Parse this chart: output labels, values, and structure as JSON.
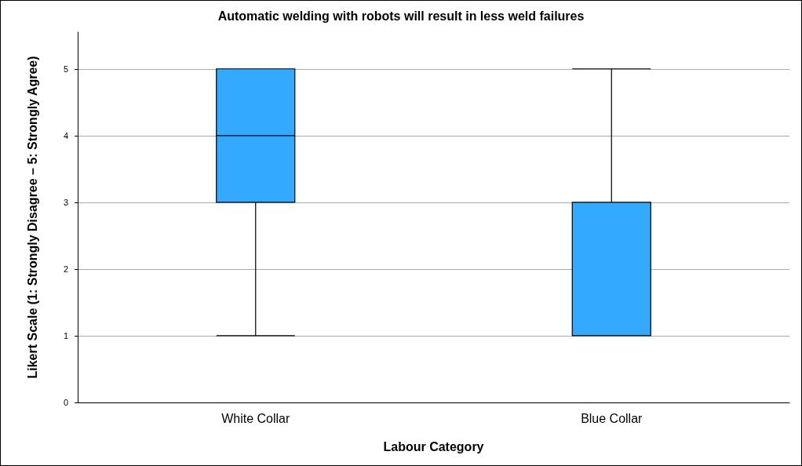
{
  "chart_data": {
    "type": "box",
    "title": "Automatic welding with robots will result in less weld failures",
    "xlabel": "Labour Category",
    "ylabel": "Likert Scale (1: Strongly Disagree – 5: Strongly Agree)",
    "categories": [
      "White Collar",
      "Blue Collar"
    ],
    "boxes": [
      {
        "low": 1,
        "q1": 3,
        "median": 4,
        "q3": 5,
        "high": 5
      },
      {
        "low": 1,
        "q1": 1,
        "median": 3,
        "q3": 3,
        "high": 5
      }
    ],
    "color": "#33aaff",
    "ylim": [
      0,
      5.55
    ],
    "yticks": [
      0,
      1,
      2,
      3,
      4,
      5
    ],
    "grid": "y"
  }
}
